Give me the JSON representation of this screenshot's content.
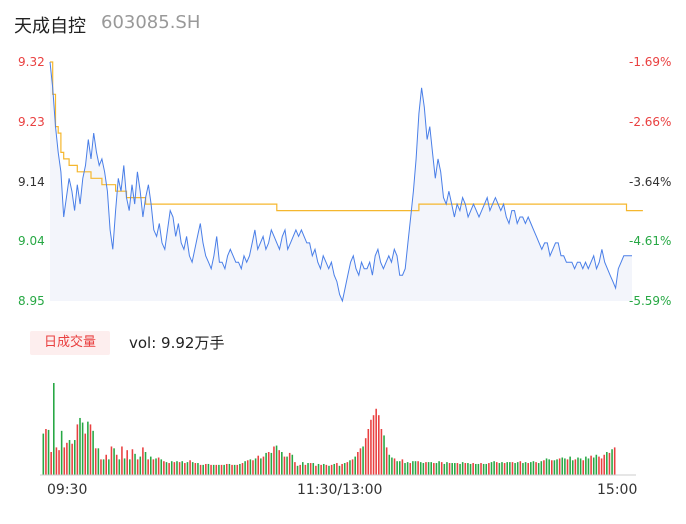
{
  "header": {
    "name": "天成自控",
    "code": "603085.SH"
  },
  "colors": {
    "up": "#e94040",
    "down": "#27a844",
    "price_line": "#4a7fe8",
    "avg_line": "#f5b72e",
    "area_fill": "#f3f5fb"
  },
  "chart_data": [
    {
      "type": "line",
      "series": [
        {
          "values": [
            9.32,
            9.28,
            9.22,
            9.18,
            9.15,
            9.08,
            9.11,
            9.14,
            9.12,
            9.09,
            9.13,
            9.1,
            9.14,
            9.16,
            9.2,
            9.17,
            9.21,
            9.18,
            9.16,
            9.17,
            9.15,
            9.12,
            9.06,
            9.03,
            9.09,
            9.14,
            9.12,
            9.16,
            9.11,
            9.09,
            9.13,
            9.1,
            9.15,
            9.12,
            9.08,
            9.11,
            9.13,
            9.1,
            9.06,
            9.05,
            9.07,
            9.04,
            9.03,
            9.06,
            9.09,
            9.08,
            9.05,
            9.07,
            9.04,
            9.03,
            9.05,
            9.02,
            9.01,
            9.03,
            9.05,
            9.07,
            9.04,
            9.02,
            9.01,
            9.0,
            9.02,
            9.05,
            9.01,
            9.01,
            9.0,
            9.02,
            9.03,
            9.02,
            9.01,
            9.01,
            9.0,
            9.02,
            9.01,
            9.02,
            9.04,
            9.06,
            9.03,
            9.04,
            9.05,
            9.03,
            9.04,
            9.06,
            9.05,
            9.04,
            9.03,
            9.05,
            9.06,
            9.03,
            9.04,
            9.05,
            9.06,
            9.05,
            9.06,
            9.05,
            9.04,
            9.04,
            9.02,
            9.03,
            9.01,
            9.0,
            9.02,
            9.01,
            9.0,
            9.01,
            8.99,
            8.98,
            8.96,
            8.95,
            8.97,
            8.99,
            9.01,
            9.02,
            9.0,
            8.99,
            9.01,
            9.0,
            9.0,
            9.01,
            8.99,
            9.02,
            9.03,
            9.01,
            9.0,
            9.01,
            9.02,
            9.01,
            9.03,
            9.02,
            8.99,
            8.99,
            9.0,
            9.04,
            9.08,
            9.12,
            9.17,
            9.24,
            9.28,
            9.25,
            9.2,
            9.22,
            9.18,
            9.14,
            9.17,
            9.15,
            9.11,
            9.1,
            9.12,
            9.1,
            9.08,
            9.1,
            9.09,
            9.11,
            9.1,
            9.08,
            9.09,
            9.1,
            9.09,
            9.08,
            9.09,
            9.1,
            9.11,
            9.09,
            9.1,
            9.11,
            9.1,
            9.09,
            9.1,
            9.08,
            9.07,
            9.09,
            9.09,
            9.07,
            9.08,
            9.08,
            9.07,
            9.08,
            9.07,
            9.06,
            9.05,
            9.04,
            9.03,
            9.04,
            9.04,
            9.02,
            9.03,
            9.04,
            9.04,
            9.02,
            9.02,
            9.01,
            9.01,
            9.01,
            9.0,
            9.01,
            9.01,
            9.0,
            9.01,
            9.0,
            9.01,
            9.02,
            9.0,
            9.01,
            9.03,
            9.01,
            9.0,
            8.99,
            8.98,
            8.97,
            9.0,
            9.01,
            9.02,
            9.02,
            9.02,
            9.02
          ]
        },
        {
          "values": [
            9.32,
            9.27,
            9.22,
            9.21,
            9.18,
            9.17,
            9.17,
            9.16,
            9.16,
            9.16,
            9.15,
            9.15,
            9.15,
            9.15,
            9.15,
            9.14,
            9.14,
            9.14,
            9.14,
            9.13,
            9.13,
            9.13,
            9.13,
            9.13,
            9.12,
            9.12,
            9.12,
            9.12,
            9.11,
            9.11,
            9.11,
            9.11,
            9.11,
            9.11,
            9.11,
            9.1,
            9.1,
            9.1,
            9.1,
            9.1,
            9.1,
            9.1,
            9.1,
            9.1,
            9.1,
            9.1,
            9.1,
            9.1,
            9.1,
            9.1,
            9.1,
            9.1,
            9.1,
            9.1,
            9.1,
            9.1,
            9.1,
            9.1,
            9.1,
            9.1,
            9.1,
            9.1,
            9.1,
            9.1,
            9.1,
            9.1,
            9.1,
            9.1,
            9.1,
            9.1,
            9.1,
            9.1,
            9.1,
            9.1,
            9.1,
            9.1,
            9.1,
            9.1,
            9.1,
            9.1,
            9.1,
            9.1,
            9.1,
            9.09,
            9.09,
            9.09,
            9.09,
            9.09,
            9.09,
            9.09,
            9.09,
            9.09,
            9.09,
            9.09,
            9.09,
            9.09,
            9.09,
            9.09,
            9.09,
            9.09,
            9.09,
            9.09,
            9.09,
            9.09,
            9.09,
            9.09,
            9.09,
            9.09,
            9.09,
            9.09,
            9.09,
            9.09,
            9.09,
            9.09,
            9.09,
            9.09,
            9.09,
            9.09,
            9.09,
            9.09,
            9.09,
            9.09,
            9.09,
            9.09,
            9.09,
            9.09,
            9.09,
            9.09,
            9.09,
            9.09,
            9.09,
            9.09,
            9.09,
            9.09,
            9.09,
            9.1,
            9.1,
            9.1,
            9.1,
            9.1,
            9.1,
            9.1,
            9.1,
            9.1,
            9.1,
            9.1,
            9.1,
            9.1,
            9.1,
            9.1,
            9.1,
            9.1,
            9.1,
            9.1,
            9.1,
            9.1,
            9.1,
            9.1,
            9.1,
            9.1,
            9.1,
            9.1,
            9.1,
            9.1,
            9.1,
            9.1,
            9.1,
            9.1,
            9.1,
            9.1,
            9.1,
            9.1,
            9.1,
            9.1,
            9.1,
            9.1,
            9.1,
            9.1,
            9.1,
            9.1,
            9.1,
            9.1,
            9.1,
            9.1,
            9.1,
            9.1,
            9.1,
            9.1,
            9.1,
            9.1,
            9.1,
            9.1,
            9.1,
            9.1,
            9.1,
            9.1,
            9.1,
            9.1,
            9.1,
            9.1,
            9.1,
            9.1,
            9.1,
            9.1,
            9.1,
            9.1,
            9.1,
            9.1,
            9.1,
            9.1,
            9.1,
            9.09,
            9.09,
            9.09,
            9.09,
            9.09,
            9.09,
            9.09
          ]
        }
      ],
      "ylim": [
        8.95,
        9.32
      ],
      "y_ticks": [
        "9.32",
        "9.23",
        "9.14",
        "9.04",
        "8.95"
      ],
      "y_ticks_right": [
        "-1.69%",
        "-2.66%",
        "-3.64%",
        "-4.61%",
        "-5.59%"
      ],
      "x_ticks": [
        "09:30",
        "11:30/13:00",
        "15:00"
      ]
    },
    {
      "type": "bar",
      "title": "日成交量",
      "label": "vol: 9.92万手",
      "values": [
        45,
        50,
        49,
        25,
        100,
        30,
        27,
        48,
        30,
        35,
        38,
        34,
        38,
        55,
        62,
        57,
        45,
        58,
        55,
        48,
        29,
        29,
        17,
        17,
        22,
        17,
        31,
        29,
        22,
        17,
        31,
        18,
        27,
        17,
        28,
        23,
        17,
        20,
        30,
        25,
        17,
        20,
        17,
        18,
        19,
        17,
        15,
        14,
        13,
        15,
        14,
        15,
        14,
        15,
        13,
        14,
        16,
        14,
        13,
        13,
        11,
        11,
        12,
        12,
        11,
        11,
        11,
        11,
        11,
        11,
        12,
        12,
        11,
        11,
        11,
        12,
        13,
        15,
        16,
        17,
        16,
        18,
        21,
        18,
        20,
        24,
        25,
        24,
        31,
        32,
        27,
        25,
        20,
        20,
        24,
        22,
        14,
        10,
        11,
        14,
        11,
        13,
        13,
        13,
        10,
        12,
        11,
        12,
        11,
        10,
        11,
        12,
        13,
        10,
        12,
        13,
        14,
        16,
        17,
        20,
        25,
        29,
        31,
        40,
        50,
        60,
        65,
        72,
        65,
        50,
        43,
        30,
        22,
        19,
        18,
        15,
        15,
        17,
        13,
        14,
        13,
        15,
        15,
        15,
        14,
        13,
        14,
        14,
        14,
        13,
        13,
        15,
        14,
        12,
        14,
        13,
        13,
        13,
        13,
        12,
        14,
        13,
        13,
        12,
        13,
        12,
        12,
        13,
        12,
        12,
        13,
        14,
        15,
        14,
        13,
        14,
        13,
        14,
        14,
        14,
        13,
        14,
        15,
        13,
        14,
        13,
        14,
        15,
        14,
        13,
        15,
        16,
        18,
        17,
        16,
        16,
        17,
        18,
        19,
        18,
        17,
        20,
        16,
        17,
        19,
        18,
        16,
        20,
        18,
        21,
        19,
        22,
        20,
        18,
        22,
        25,
        24,
        28,
        30
      ],
      "up": [
        false,
        true,
        false,
        true,
        false,
        true,
        true,
        false,
        true,
        true,
        false,
        true,
        false,
        true,
        false,
        false,
        true,
        false,
        true,
        false,
        true,
        false,
        true,
        false,
        true,
        false,
        true,
        false,
        true,
        false,
        true,
        false,
        true,
        false,
        true,
        false,
        true,
        false,
        true,
        false,
        true,
        false,
        true,
        false,
        true,
        false,
        true,
        false,
        true,
        false,
        true,
        false,
        true,
        false,
        true,
        false,
        true,
        false,
        true,
        false,
        true,
        false,
        true,
        false,
        true,
        false,
        true,
        false,
        true,
        false,
        true,
        false,
        true,
        false,
        true,
        false,
        true,
        false,
        true,
        false,
        true,
        false,
        true,
        false,
        true,
        false,
        true,
        false,
        true,
        false,
        true,
        false,
        true,
        false,
        true,
        false,
        true,
        false,
        true,
        false,
        true,
        false,
        true,
        false,
        true,
        false,
        true,
        false,
        true,
        false,
        true,
        false,
        true,
        false,
        true,
        false,
        true,
        false,
        true,
        false,
        true,
        true,
        false,
        true,
        true,
        true,
        true,
        true,
        true,
        true,
        false,
        true,
        false,
        false,
        true,
        false,
        false,
        true,
        false,
        false,
        true,
        false,
        false,
        true,
        false,
        false,
        true,
        false,
        false,
        true,
        false,
        false,
        true,
        false,
        false,
        true,
        false,
        false,
        true,
        false,
        false,
        true,
        false,
        false,
        true,
        false,
        false,
        true,
        false,
        false,
        true,
        false,
        false,
        true,
        false,
        false,
        true,
        false,
        false,
        true,
        false,
        false,
        true,
        false,
        false,
        true,
        false,
        false,
        true,
        false,
        false,
        true,
        false,
        false,
        true,
        false,
        false,
        true,
        false,
        false,
        true,
        false,
        false,
        true,
        false,
        false,
        true,
        false,
        false,
        true,
        false,
        false,
        true,
        true,
        true,
        false,
        true,
        false,
        true,
        true
      ]
    }
  ]
}
